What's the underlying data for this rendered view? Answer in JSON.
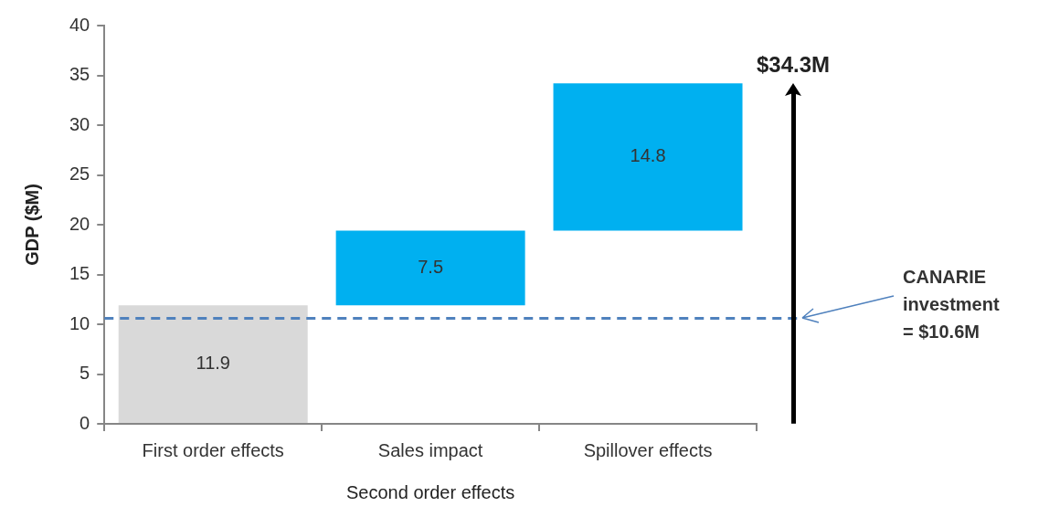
{
  "chart_data": {
    "type": "bar",
    "ylabel": "GDP ($M)",
    "xlabel": "Second order effects",
    "categories": [
      "First order effects",
      "Sales impact",
      "Spillover effects"
    ],
    "values": [
      11.9,
      7.5,
      14.8
    ],
    "base": [
      0,
      11.9,
      19.4
    ],
    "colors": [
      "#d9d9d9",
      "#00b0f0",
      "#00b0f0"
    ],
    "data_labels": true,
    "ylim": [
      0,
      40
    ],
    "yticks": [
      0,
      5,
      10,
      15,
      20,
      25,
      30,
      35,
      40
    ],
    "grid": false,
    "legend": false,
    "ref_lines": [
      {
        "axis": "y",
        "value": 10.6,
        "label": "CANARIE investment = $10.6M",
        "color": "#4f81bd",
        "line_style": "dashed"
      }
    ],
    "annotations": [
      "$34.3M"
    ]
  }
}
